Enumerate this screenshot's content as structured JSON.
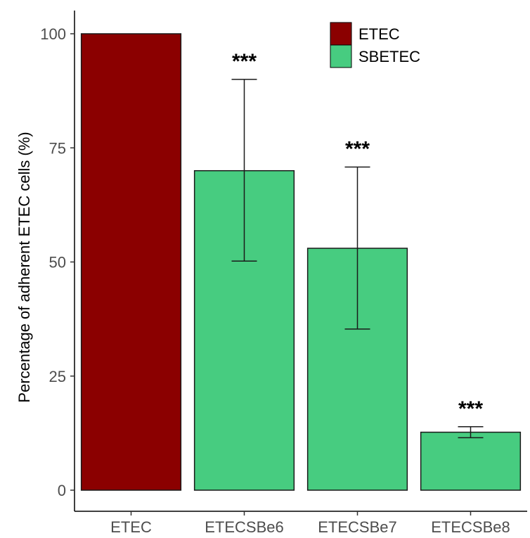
{
  "chart_data": {
    "type": "bar",
    "categories": [
      "ETEC",
      "ETECSBe6",
      "ETECSBe7",
      "ETECSBe8"
    ],
    "values": [
      100,
      70,
      53,
      12.7
    ],
    "error_upper": [
      null,
      90,
      70.8,
      13.9
    ],
    "error_lower": [
      null,
      50.2,
      35.3,
      11.5
    ],
    "groups": [
      "ETEC",
      "SBETEC",
      "SBETEC",
      "SBETEC"
    ],
    "significance": [
      "",
      "***",
      "***",
      "***"
    ],
    "ylabel": "Percentage of adherent ETEC cells (%)",
    "xlabel": "",
    "ylim": [
      0,
      105
    ],
    "yticks": [
      0,
      25,
      50,
      75,
      100
    ],
    "yticklabels": [
      "0",
      "25",
      "50",
      "75",
      "100"
    ],
    "grid": false,
    "legend": {
      "placement": "top-right",
      "entries": [
        {
          "label": "ETEC",
          "color": "#8b0000"
        },
        {
          "label": "SBETEC",
          "color": "#47cc80"
        }
      ]
    },
    "colors": {
      "ETEC": "#8b0000",
      "SBETEC": "#47cc80"
    }
  }
}
